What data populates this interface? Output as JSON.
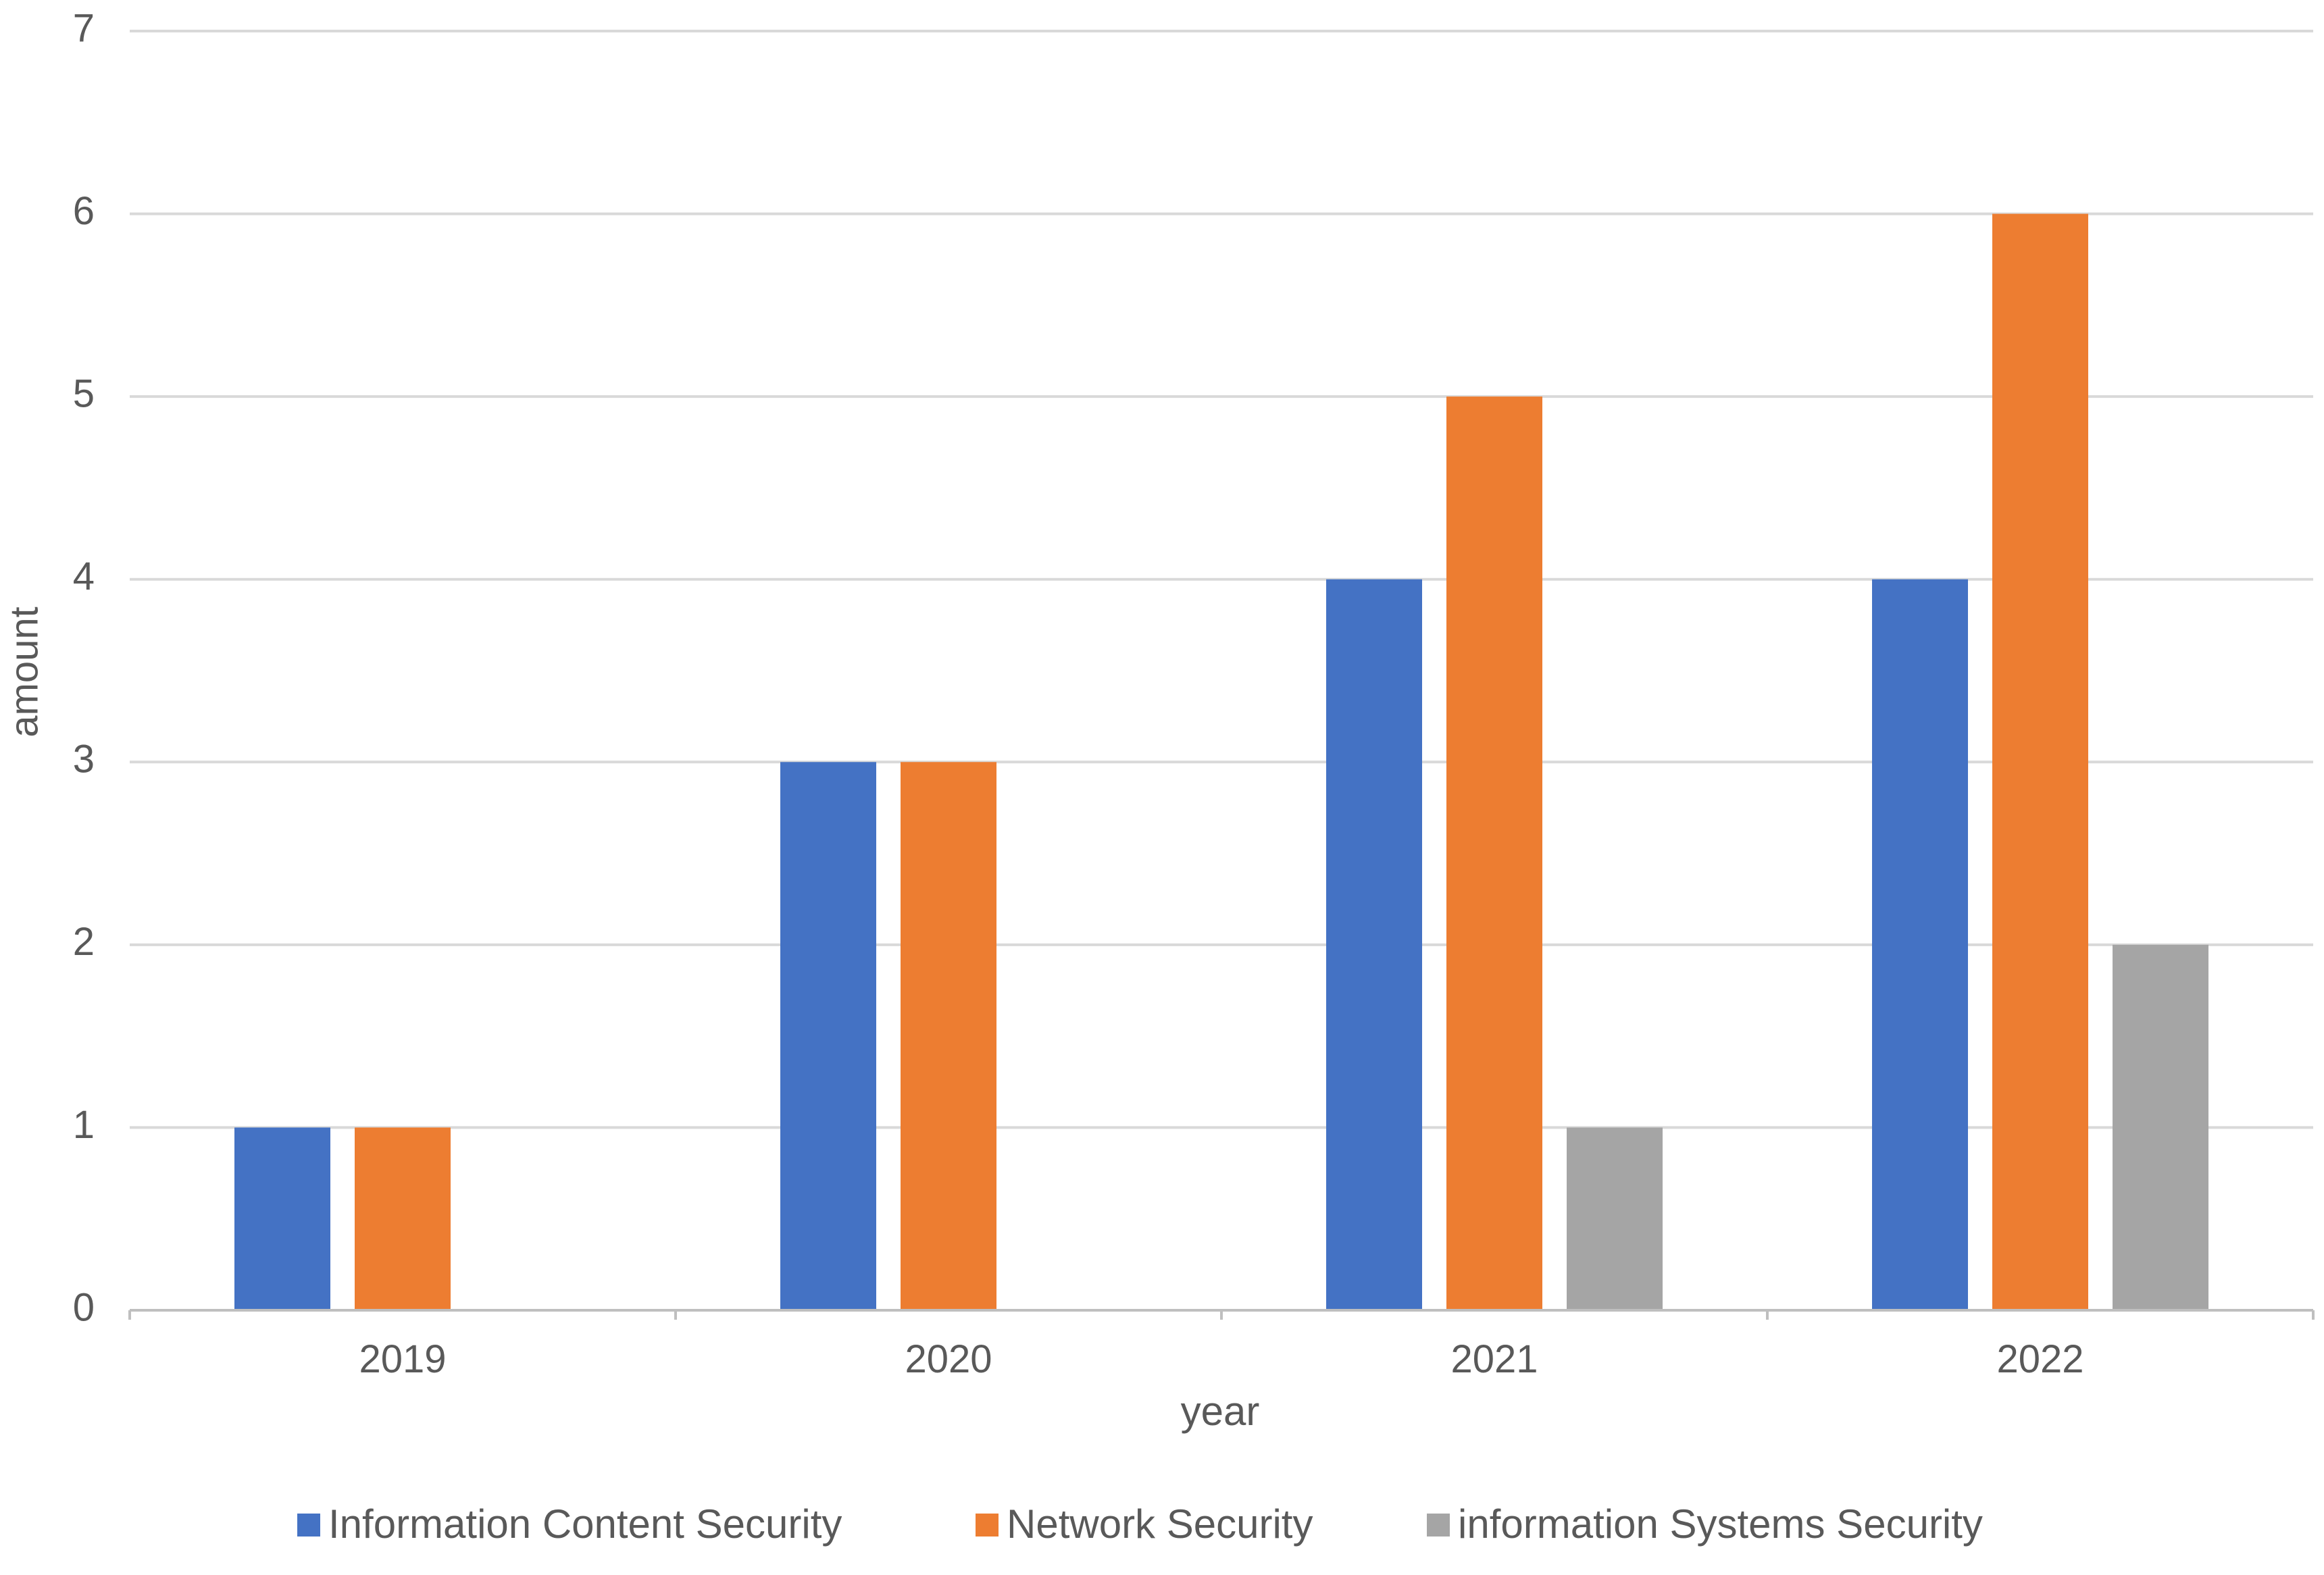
{
  "chart_data": {
    "type": "bar",
    "title": "",
    "xlabel": "year",
    "ylabel": "amount",
    "categories": [
      "2019",
      "2020",
      "2021",
      "2022"
    ],
    "series": [
      {
        "name": "Information Content Security",
        "values": [
          1,
          3,
          4,
          4
        ],
        "color": "#4472C4"
      },
      {
        "name": "Network Security",
        "values": [
          1,
          3,
          5,
          6
        ],
        "color": "#ED7D31"
      },
      {
        "name": "information Systems Security",
        "values": [
          0,
          0,
          1,
          2
        ],
        "color": "#A5A5A5"
      }
    ],
    "ylim": [
      0,
      7
    ],
    "yticks": [
      0,
      1,
      2,
      3,
      4,
      5,
      6,
      7
    ],
    "grid": true,
    "legend": "bottom"
  },
  "colors": {
    "gridline": "#D9D9D9",
    "axis": "#BFBFBF",
    "text": "#595959"
  }
}
